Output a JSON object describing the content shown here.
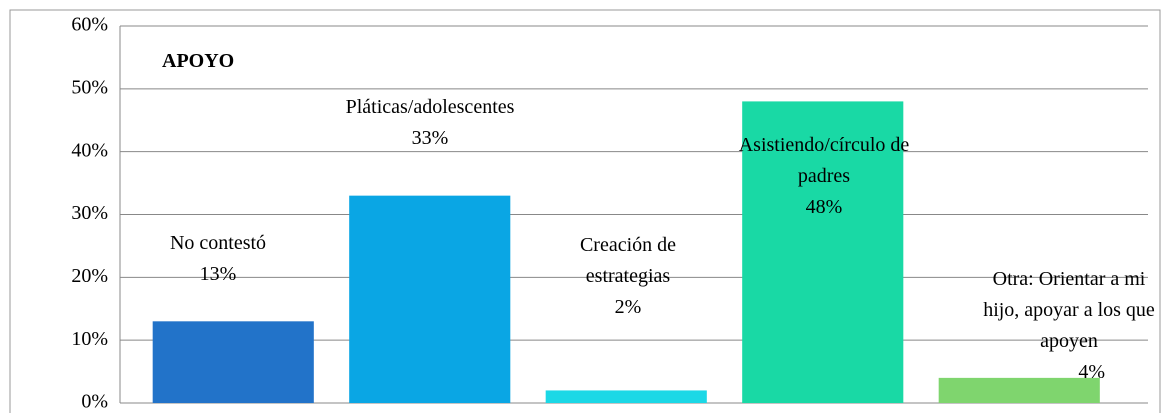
{
  "chart_data": {
    "type": "bar",
    "title": "APOYO",
    "categories": [
      "No contestó",
      "Pláticas/adolescentes",
      "Creación de estrategias",
      "Asistiendo/círculo de padres",
      "Otra: Orientar a mi hijo, apoyar a los que apoyen"
    ],
    "values": [
      13,
      33,
      2,
      48,
      4
    ],
    "value_labels": [
      "13%",
      "33%",
      "2%",
      "48%",
      "4%"
    ],
    "colors": [
      "#2273c9",
      "#0aa6e4",
      "#1bd8e6",
      "#19d9a5",
      "#7fd56e"
    ],
    "ylim": [
      0,
      60
    ],
    "yticks": [
      {
        "value": 0,
        "label": "0%"
      },
      {
        "value": 10,
        "label": "10%"
      },
      {
        "value": 20,
        "label": "20%"
      },
      {
        "value": 30,
        "label": "30%"
      },
      {
        "value": 40,
        "label": "40%"
      },
      {
        "value": 50,
        "label": "50%"
      },
      {
        "value": 60,
        "label": "60%"
      }
    ],
    "grid": true
  }
}
